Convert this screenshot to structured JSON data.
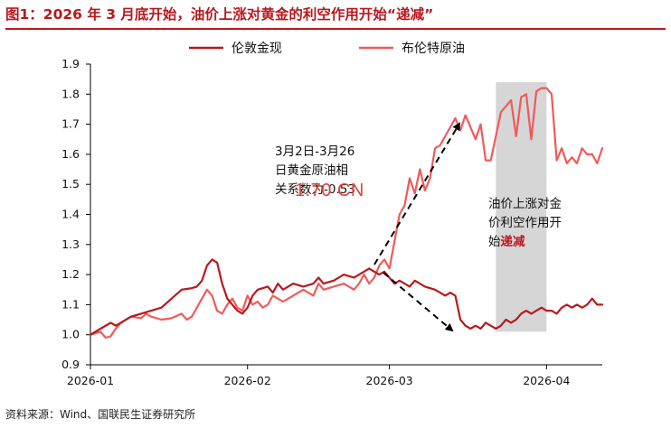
{
  "title": "图1：2026 年 3 月底开始，油价上涨对黄金的利空作用开始“递减”",
  "source": "资料来源：Wind、国联民生证券研究所",
  "colors": {
    "title": "#b8181e",
    "gold": "#b8181e",
    "brent": "#f05a5a",
    "shade": "#d6d6d6",
    "axis": "#000000"
  },
  "annotations": {
    "corr_lines": [
      "3月2日-3月26",
      "日黄金原油相",
      "关系数为-0.53"
    ],
    "overlay": "1.70 CN",
    "shade_lines": [
      "油价上涨对金",
      "价利空作用开"
    ],
    "shade_last_prefix": "始",
    "shade_last_red": "递减"
  },
  "chart_data": {
    "type": "line",
    "title": "",
    "xlabel": "",
    "ylabel": "",
    "ylim": [
      0.9,
      1.9
    ],
    "yticks": [
      "0.9",
      "1.0",
      "1.1",
      "1.2",
      "1.3",
      "1.4",
      "1.5",
      "1.6",
      "1.7",
      "1.8",
      "1.9"
    ],
    "xlim": [
      0,
      101
    ],
    "xticks": [
      {
        "label": "2026-01",
        "x": 0
      },
      {
        "label": "2026-02",
        "x": 31
      },
      {
        "label": "2026-03",
        "x": 59
      },
      {
        "label": "2026-04",
        "x": 90
      }
    ],
    "legend": "top-center",
    "shaded_region": {
      "x": [
        80,
        90
      ],
      "note": "late March to early April 2026"
    },
    "series": [
      {
        "name": "伦敦金现",
        "color": "#b8181e",
        "x": [
          0,
          2,
          4,
          5,
          6,
          8,
          10,
          12,
          14,
          16,
          18,
          20,
          21,
          22,
          23,
          24,
          25,
          26,
          27,
          28,
          29,
          30,
          31,
          32,
          33,
          35,
          36,
          37,
          38,
          40,
          42,
          44,
          45,
          46,
          48,
          50,
          52,
          54,
          55,
          56,
          57,
          58,
          59,
          60,
          61,
          62,
          63,
          64,
          65,
          66,
          68,
          70,
          71,
          72,
          73,
          74,
          75,
          76,
          77,
          78,
          79,
          80,
          81,
          82,
          83,
          84,
          85,
          86,
          87,
          88,
          89,
          90,
          91,
          92,
          93,
          94,
          95,
          96,
          97,
          98,
          99,
          100,
          101
        ],
        "y": [
          1.0,
          1.02,
          1.04,
          1.03,
          1.04,
          1.06,
          1.07,
          1.08,
          1.09,
          1.12,
          1.15,
          1.155,
          1.16,
          1.18,
          1.23,
          1.25,
          1.24,
          1.17,
          1.12,
          1.1,
          1.08,
          1.07,
          1.09,
          1.13,
          1.15,
          1.16,
          1.14,
          1.17,
          1.15,
          1.17,
          1.16,
          1.17,
          1.19,
          1.17,
          1.18,
          1.2,
          1.19,
          1.21,
          1.22,
          1.21,
          1.2,
          1.21,
          1.19,
          1.17,
          1.18,
          1.17,
          1.16,
          1.18,
          1.17,
          1.16,
          1.15,
          1.13,
          1.14,
          1.13,
          1.05,
          1.03,
          1.02,
          1.03,
          1.02,
          1.04,
          1.03,
          1.02,
          1.03,
          1.05,
          1.04,
          1.05,
          1.07,
          1.08,
          1.07,
          1.08,
          1.09,
          1.08,
          1.08,
          1.07,
          1.09,
          1.1,
          1.09,
          1.1,
          1.09,
          1.1,
          1.12,
          1.1,
          1.1
        ]
      },
      {
        "name": "布伦特原油",
        "color": "#f05a5a",
        "x": [
          0,
          2,
          3,
          4,
          5,
          6,
          8,
          10,
          11,
          12,
          14,
          16,
          18,
          19,
          20,
          21,
          22,
          23,
          24,
          25,
          26,
          27,
          28,
          29,
          30,
          31,
          32,
          33,
          34,
          35,
          36,
          37,
          38,
          40,
          42,
          44,
          45,
          46,
          48,
          50,
          52,
          53,
          54,
          55,
          56,
          57,
          58,
          59,
          60,
          61,
          62,
          63,
          64,
          65,
          66,
          67,
          68,
          69,
          70,
          71,
          72,
          73,
          74,
          75,
          76,
          77,
          78,
          79,
          80,
          81,
          82,
          83,
          84,
          85,
          86,
          87,
          88,
          89,
          90,
          91,
          92,
          93,
          94,
          95,
          96,
          97,
          98,
          99,
          100,
          101
        ],
        "y": [
          1.0,
          1.01,
          0.99,
          0.995,
          1.02,
          1.04,
          1.06,
          1.055,
          1.07,
          1.06,
          1.05,
          1.055,
          1.07,
          1.05,
          1.06,
          1.09,
          1.12,
          1.15,
          1.13,
          1.08,
          1.07,
          1.1,
          1.12,
          1.09,
          1.08,
          1.13,
          1.1,
          1.11,
          1.09,
          1.1,
          1.13,
          1.12,
          1.11,
          1.13,
          1.15,
          1.13,
          1.17,
          1.15,
          1.16,
          1.17,
          1.15,
          1.17,
          1.2,
          1.17,
          1.19,
          1.23,
          1.25,
          1.22,
          1.31,
          1.4,
          1.43,
          1.52,
          1.47,
          1.55,
          1.48,
          1.52,
          1.62,
          1.63,
          1.66,
          1.69,
          1.72,
          1.68,
          1.73,
          1.69,
          1.65,
          1.7,
          1.58,
          1.58,
          1.66,
          1.74,
          1.76,
          1.78,
          1.66,
          1.79,
          1.8,
          1.65,
          1.81,
          1.82,
          1.82,
          1.8,
          1.58,
          1.62,
          1.57,
          1.59,
          1.57,
          1.62,
          1.6,
          1.6,
          1.57,
          1.62
        ]
      }
    ]
  }
}
